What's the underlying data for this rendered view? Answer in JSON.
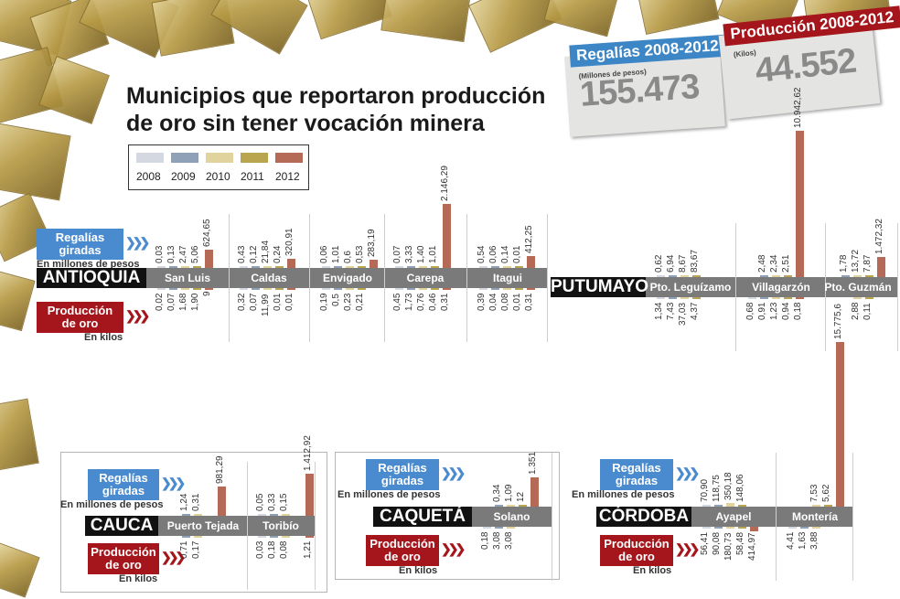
{
  "title": [
    "Municipios que reportaron producción",
    "de oro sin tener vocación minera"
  ],
  "legend": {
    "years": [
      "2008",
      "2009",
      "2010",
      "2011",
      "2012"
    ],
    "colors": [
      "#d4d9e1",
      "#8fa1b6",
      "#e0d39d",
      "#b9a450",
      "#b46a56"
    ]
  },
  "totals": {
    "regalias": {
      "label": "Regalías 2008-2012",
      "unit": "(Millones de pesos)",
      "value": "155.473"
    },
    "produccion": {
      "label": "Producción 2008-2012",
      "unit": "(Kilos)",
      "value": "44.552"
    }
  },
  "labels": {
    "regalias": [
      "Regalías",
      "giradas"
    ],
    "regalias_unit": "En millones de pesos",
    "produccion": [
      "Producción",
      "de oro"
    ],
    "produccion_unit": "En kilos"
  },
  "chart_data": {
    "type": "bar",
    "title": "Municipios que reportaron producción de oro sin tener vocación minera",
    "series_names": [
      "2008",
      "2009",
      "2010",
      "2011",
      "2012"
    ],
    "departments": [
      {
        "name": "ANTIOQUIA",
        "municipalities": [
          {
            "name": "San Luis",
            "regalias": [
              "0,03",
              "0,13",
              "2,47",
              "5,06",
              "624,65"
            ],
            "produccion": [
              "0,02",
              "0,07",
              "1,68",
              "1,90",
              "9"
            ]
          },
          {
            "name": "Caldas",
            "regalias": [
              "0,43",
              "0,12",
              "21,84",
              "0,24",
              "320,91"
            ],
            "produccion": [
              "0,32",
              "0,07",
              "11,99",
              "0,01",
              "0,01"
            ]
          },
          {
            "name": "Envigado",
            "regalias": [
              "0,06",
              "1,01",
              "0,6",
              "0,53",
              "283,19"
            ],
            "produccion": [
              "0,19",
              "0,5",
              "0,23",
              "0,21",
              ""
            ]
          },
          {
            "name": "Carepa",
            "regalias": [
              "0,07",
              "3,33",
              "1,40",
              "1,01",
              "2.146,29"
            ],
            "produccion": [
              "0,45",
              "1,73",
              "0,76",
              "0,46",
              "0,31"
            ]
          },
          {
            "name": "Itagui",
            "regalias": [
              "0,54",
              "0,06",
              "0,14",
              "0,01",
              "412,25"
            ],
            "produccion": [
              "0,39",
              "0,04",
              "0,08",
              "0,01",
              "0,31"
            ]
          }
        ]
      },
      {
        "name": "PUTUMAYO",
        "municipalities": [
          {
            "name": "Pto. Leguízamo",
            "regalias": [
              "0,62",
              "6,94",
              "8,67",
              "83,67",
              ""
            ],
            "produccion": [
              "1,34",
              "7,43",
              "37,03",
              "4,37",
              ""
            ]
          },
          {
            "name": "Villagarzón",
            "regalias": [
              "",
              "2,48",
              "2,34",
              "2,51",
              "10.942,62"
            ],
            "produccion": [
              "0,68",
              "0,91",
              "1,23",
              "0,94",
              "0,18"
            ]
          },
          {
            "name": "Pto. Guzmán",
            "regalias": [
              "",
              "1,78",
              "13,72",
              "7,87",
              "1.472,32"
            ],
            "produccion": [
              "",
              "",
              "2,88",
              "0,11",
              ""
            ]
          }
        ]
      },
      {
        "name": "CAUCA",
        "municipalities": [
          {
            "name": "Puerto Tejada",
            "regalias": [
              "",
              "1,24",
              "0,31",
              "",
              "981,29"
            ],
            "produccion": [
              "",
              "0,71",
              "0,17",
              "",
              ""
            ]
          },
          {
            "name": "Toribío",
            "regalias": [
              "0,05",
              "0,33",
              "0,15",
              "",
              "1.412,92"
            ],
            "produccion": [
              "0,03",
              "0,18",
              "0,08",
              "",
              "1,21"
            ]
          }
        ]
      },
      {
        "name": "CAQUETÁ",
        "municipalities": [
          {
            "name": "Solano",
            "regalias": [
              "",
              "0,34",
              "1,09",
              "12",
              "1.351"
            ],
            "produccion": [
              "0,18",
              "3,08",
              "3,08",
              "",
              ""
            ]
          }
        ]
      },
      {
        "name": "CÓRDOBA",
        "municipalities": [
          {
            "name": "Ayapel",
            "regalias": [
              "70,90",
              "118,75",
              "350,18",
              "148,06",
              ""
            ],
            "produccion": [
              "56,41",
              "90,08",
              "180,73",
              "58,48",
              "414,97"
            ]
          },
          {
            "name": "Montería",
            "regalias": [
              "",
              "",
              "7,53",
              "5,62",
              "15.775,6"
            ],
            "produccion": [
              "4,41",
              "1,63",
              "3,88",
              "",
              ""
            ]
          }
        ]
      }
    ]
  }
}
